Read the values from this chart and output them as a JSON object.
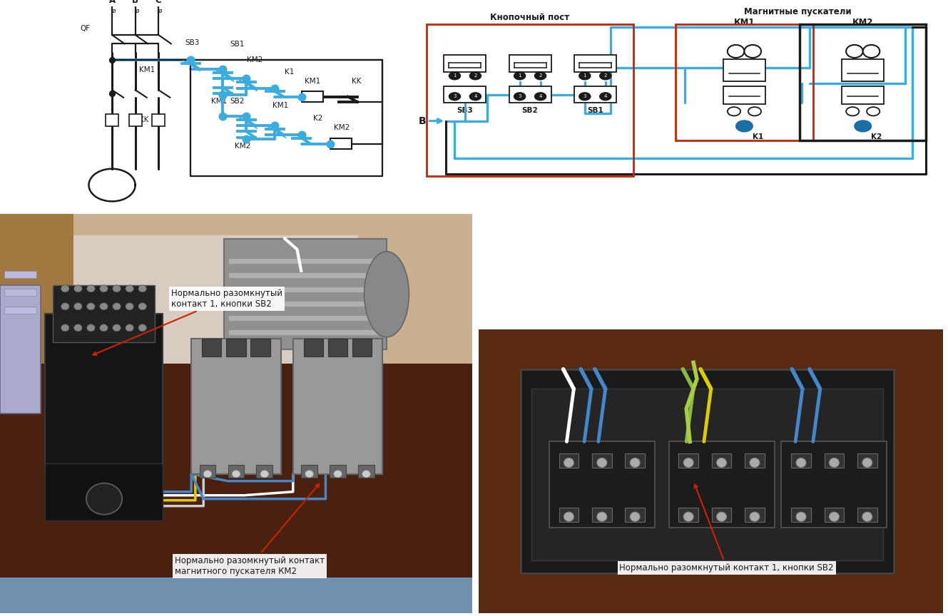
{
  "background_color": "#ffffff",
  "fig_width": 13.29,
  "fig_height": 8.64,
  "blue": "#3aace0",
  "black": "#1a1a1a",
  "red": "#cc2200",
  "dot_blue": "#1a6fa8",
  "ann1_text": "Нормально разомкнутый\nконтакт 1, кнопки SB2",
  "ann2_text": "Нормально разомкнутый контакт\nмагнитного пускателя КМ2",
  "ann3_text": "Нормально разомкнутый контакт 1, кнопки SB2",
  "label_knopochny": "Кнопочный пост",
  "label_magnitnye": "Магнитные пускатели",
  "label_B": "В",
  "label_KM1": "КМ1",
  "label_KM2": "КМ2"
}
